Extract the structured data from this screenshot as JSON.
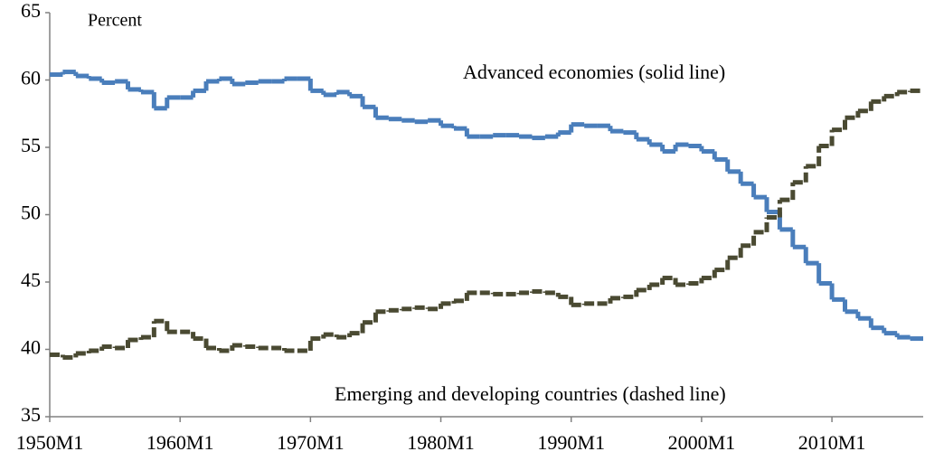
{
  "chart_data": {
    "type": "line",
    "step": true,
    "ylabel": "Percent",
    "x": [
      1950,
      1951,
      1952,
      1953,
      1954,
      1955,
      1956,
      1957,
      1958,
      1959,
      1960,
      1961,
      1962,
      1963,
      1964,
      1965,
      1966,
      1967,
      1968,
      1969,
      1970,
      1971,
      1972,
      1973,
      1974,
      1975,
      1976,
      1977,
      1978,
      1979,
      1980,
      1981,
      1982,
      1983,
      1984,
      1985,
      1986,
      1987,
      1988,
      1989,
      1990,
      1991,
      1992,
      1993,
      1994,
      1995,
      1996,
      1997,
      1998,
      1999,
      2000,
      2001,
      2002,
      2003,
      2004,
      2005,
      2006,
      2007,
      2008,
      2009,
      2010,
      2011,
      2012,
      2013,
      2014,
      2015,
      2016
    ],
    "series": [
      {
        "name": "Advanced economies (solid line)",
        "color": "#4a7ebb",
        "dashed": false,
        "values": [
          60.4,
          60.6,
          60.3,
          60.1,
          59.8,
          59.9,
          59.3,
          59.1,
          57.9,
          58.7,
          58.7,
          59.2,
          59.9,
          60.1,
          59.7,
          59.8,
          59.9,
          59.9,
          60.1,
          60.1,
          59.2,
          58.9,
          59.1,
          58.8,
          58.0,
          57.2,
          57.1,
          57.0,
          56.9,
          57.0,
          56.6,
          56.4,
          55.8,
          55.8,
          55.9,
          55.9,
          55.8,
          55.7,
          55.8,
          56.1,
          56.7,
          56.6,
          56.6,
          56.2,
          56.1,
          55.6,
          55.2,
          54.7,
          55.2,
          55.1,
          54.7,
          54.1,
          53.2,
          52.3,
          51.3,
          50.2,
          48.9,
          47.6,
          46.4,
          44.9,
          43.7,
          42.8,
          42.3,
          41.6,
          41.2,
          40.9,
          40.8
        ]
      },
      {
        "name": "Emerging and developing countries (dashed line)",
        "color": "#4a4a32",
        "dashed": true,
        "values": [
          39.6,
          39.4,
          39.7,
          39.9,
          40.2,
          40.1,
          40.7,
          40.9,
          42.1,
          41.3,
          41.3,
          40.8,
          40.1,
          39.9,
          40.3,
          40.2,
          40.1,
          40.1,
          39.9,
          39.9,
          40.8,
          41.1,
          40.9,
          41.2,
          42.0,
          42.8,
          42.9,
          43.0,
          43.1,
          43.0,
          43.4,
          43.6,
          44.2,
          44.2,
          44.1,
          44.1,
          44.2,
          44.3,
          44.2,
          43.9,
          43.3,
          43.4,
          43.4,
          43.8,
          43.9,
          44.4,
          44.8,
          45.3,
          44.8,
          44.9,
          45.3,
          45.9,
          46.8,
          47.7,
          48.7,
          49.8,
          51.1,
          52.4,
          53.6,
          55.1,
          56.3,
          57.2,
          57.7,
          58.4,
          58.8,
          59.1,
          59.2
        ]
      }
    ],
    "xlim": [
      1950,
      2017
    ],
    "xticks": [
      {
        "value": 1950,
        "label": "1950M1"
      },
      {
        "value": 1960,
        "label": "1960M1"
      },
      {
        "value": 1970,
        "label": "1970M1"
      },
      {
        "value": 1980,
        "label": "1980M1"
      },
      {
        "value": 1990,
        "label": "1990M1"
      },
      {
        "value": 2000,
        "label": "2000M1"
      },
      {
        "value": 2010,
        "label": "2010M1"
      }
    ],
    "ylim": [
      35,
      65
    ],
    "yticks": [
      35,
      40,
      45,
      50,
      55,
      60,
      65
    ],
    "grid": false
  }
}
